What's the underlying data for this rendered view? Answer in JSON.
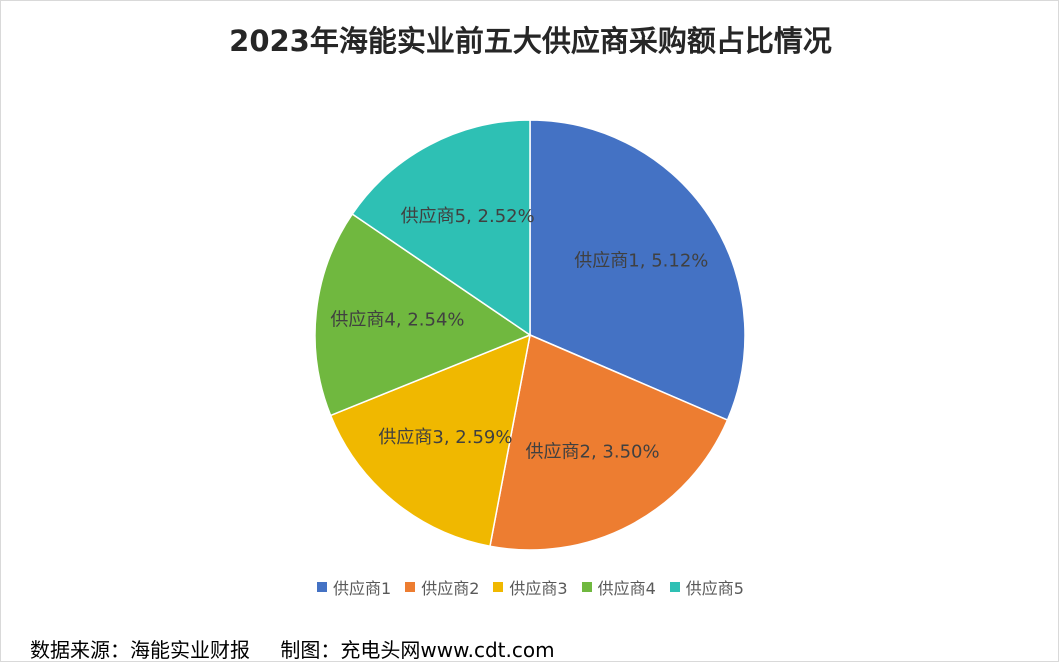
{
  "chart_data": {
    "type": "pie",
    "title": "2023年海能实业前五大供应商采购额占比情况",
    "categories": [
      "供应商1",
      "供应商2",
      "供应商3",
      "供应商4",
      "供应商5"
    ],
    "values": [
      5.12,
      3.5,
      2.59,
      2.54,
      2.52
    ],
    "data_labels": [
      "供应商1, 5.12%",
      "供应商2, 3.50%",
      "供应商3, 2.59%",
      "供应商4, 2.54%",
      "供应商5, 2.52%"
    ],
    "colors": [
      "#4472c4",
      "#ed7d31",
      "#f0b800",
      "#70b83f",
      "#2ec0b4"
    ],
    "legend_position": "bottom"
  },
  "footer": {
    "source": "数据来源：海能实业财报",
    "credit": "制图：充电头网www.cdt.com"
  }
}
